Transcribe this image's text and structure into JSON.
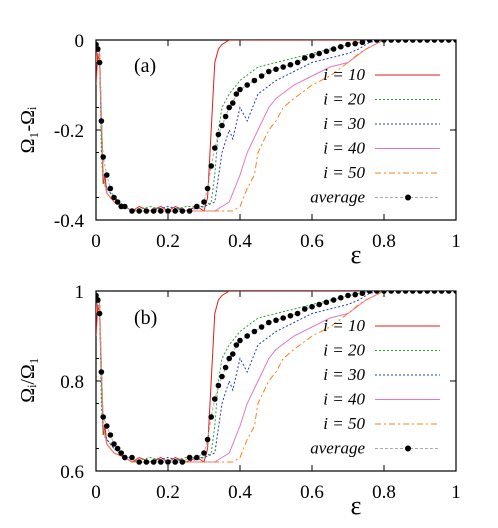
{
  "chart_data": [
    {
      "type": "line",
      "panel_label": "(a)",
      "xlabel": "ε",
      "ylabel": "Ω₁-Ωᵢ",
      "xlim": [
        0,
        1
      ],
      "ylim": [
        -0.4,
        0
      ],
      "xticks": [
        "0",
        "0.2",
        "0.4",
        "0.6",
        "0.8",
        "1"
      ],
      "yticks": [
        "0",
        "-0.2",
        "-0.4"
      ],
      "legend_position": "right",
      "series": [
        {
          "name": "i = 10",
          "color": "#e41a1c",
          "style": "solid",
          "x": [
            0,
            0.005,
            0.01,
            0.015,
            0.02,
            0.025,
            0.03,
            0.05,
            0.08,
            0.1,
            0.12,
            0.15,
            0.18,
            0.2,
            0.22,
            0.25,
            0.28,
            0.3,
            0.31,
            0.32,
            0.33,
            0.34,
            0.35,
            0.37,
            0.4,
            0.5,
            0.6,
            0.7,
            0.8,
            0.9,
            1
          ],
          "y": [
            -0.1,
            -0.03,
            -0.05,
            -0.2,
            -0.32,
            -0.3,
            -0.34,
            -0.36,
            -0.37,
            -0.38,
            -0.37,
            -0.38,
            -0.37,
            -0.38,
            -0.37,
            -0.38,
            -0.37,
            -0.38,
            -0.35,
            -0.2,
            -0.05,
            -0.02,
            -0.01,
            0,
            0,
            0,
            0,
            0,
            0,
            0,
            0
          ]
        },
        {
          "name": "i = 20",
          "color": "#2ca02c",
          "style": "dotted",
          "x": [
            0,
            0.005,
            0.01,
            0.015,
            0.02,
            0.03,
            0.05,
            0.08,
            0.1,
            0.15,
            0.2,
            0.25,
            0.3,
            0.32,
            0.33,
            0.34,
            0.35,
            0.37,
            0.4,
            0.45,
            0.5,
            0.55,
            0.6,
            0.65,
            0.7,
            0.73,
            0.75,
            0.8,
            0.9,
            1
          ],
          "y": [
            -0.05,
            -0.01,
            -0.02,
            -0.25,
            -0.32,
            -0.33,
            -0.35,
            -0.37,
            -0.38,
            -0.37,
            -0.38,
            -0.37,
            -0.37,
            -0.36,
            -0.3,
            -0.2,
            -0.15,
            -0.12,
            -0.09,
            -0.06,
            -0.05,
            -0.04,
            -0.03,
            -0.02,
            -0.01,
            -0.005,
            0,
            0,
            0,
            0
          ]
        },
        {
          "name": "i = 30",
          "color": "#1f3fbf",
          "style": "dotted",
          "x": [
            0,
            0.005,
            0.01,
            0.02,
            0.03,
            0.05,
            0.08,
            0.1,
            0.15,
            0.2,
            0.25,
            0.3,
            0.33,
            0.35,
            0.37,
            0.38,
            0.4,
            0.42,
            0.45,
            0.5,
            0.55,
            0.6,
            0.65,
            0.7,
            0.73,
            0.76,
            0.8,
            0.9,
            1
          ],
          "y": [
            -0.05,
            -0.01,
            -0.03,
            -0.3,
            -0.33,
            -0.35,
            -0.37,
            -0.38,
            -0.38,
            -0.37,
            -0.38,
            -0.37,
            -0.36,
            -0.25,
            -0.2,
            -0.22,
            -0.15,
            -0.18,
            -0.12,
            -0.09,
            -0.07,
            -0.05,
            -0.04,
            -0.03,
            -0.02,
            -0.005,
            0,
            0,
            0
          ]
        },
        {
          "name": "i = 40",
          "color": "#e377c2",
          "style": "solid",
          "x": [
            0,
            0.005,
            0.01,
            0.02,
            0.03,
            0.05,
            0.08,
            0.1,
            0.15,
            0.2,
            0.25,
            0.3,
            0.33,
            0.35,
            0.37,
            0.4,
            0.42,
            0.45,
            0.48,
            0.5,
            0.55,
            0.6,
            0.65,
            0.7,
            0.75,
            0.8,
            0.9,
            1
          ],
          "y": [
            -0.05,
            -0.01,
            -0.03,
            -0.3,
            -0.34,
            -0.36,
            -0.37,
            -0.38,
            -0.38,
            -0.38,
            -0.38,
            -0.38,
            -0.38,
            -0.37,
            -0.36,
            -0.3,
            -0.25,
            -0.2,
            -0.15,
            -0.13,
            -0.1,
            -0.08,
            -0.06,
            -0.05,
            -0.02,
            0,
            0,
            0
          ]
        },
        {
          "name": "i = 50",
          "color": "#ff7f0e",
          "style": "dashdot",
          "x": [
            0,
            0.005,
            0.01,
            0.02,
            0.03,
            0.05,
            0.08,
            0.1,
            0.15,
            0.2,
            0.25,
            0.3,
            0.35,
            0.38,
            0.4,
            0.42,
            0.44,
            0.45,
            0.48,
            0.5,
            0.52,
            0.55,
            0.6,
            0.65,
            0.7,
            0.73,
            0.75,
            0.8,
            0.9,
            1
          ],
          "y": [
            -0.05,
            -0.01,
            -0.03,
            -0.3,
            -0.34,
            -0.36,
            -0.37,
            -0.38,
            -0.38,
            -0.38,
            -0.38,
            -0.38,
            -0.38,
            -0.38,
            -0.37,
            -0.33,
            -0.3,
            -0.25,
            -0.2,
            -0.18,
            -0.15,
            -0.13,
            -0.1,
            -0.08,
            -0.05,
            -0.03,
            -0.02,
            0,
            0,
            0
          ]
        },
        {
          "name": "average",
          "color": "#000000",
          "style": "points",
          "line_color": "#aaaaaa",
          "x": [
            0,
            0.005,
            0.01,
            0.015,
            0.02,
            0.03,
            0.04,
            0.05,
            0.06,
            0.07,
            0.08,
            0.1,
            0.12,
            0.14,
            0.16,
            0.18,
            0.2,
            0.22,
            0.24,
            0.26,
            0.28,
            0.3,
            0.31,
            0.32,
            0.33,
            0.34,
            0.35,
            0.36,
            0.37,
            0.38,
            0.39,
            0.4,
            0.42,
            0.44,
            0.46,
            0.48,
            0.5,
            0.52,
            0.54,
            0.56,
            0.58,
            0.6,
            0.62,
            0.64,
            0.66,
            0.68,
            0.7,
            0.72,
            0.74,
            0.76,
            0.78,
            0.8,
            0.82,
            0.84,
            0.86,
            0.88,
            0.9,
            0.92,
            0.94,
            0.96,
            0.98,
            1
          ],
          "y": [
            -0.01,
            -0.02,
            -0.05,
            -0.18,
            -0.26,
            -0.3,
            -0.33,
            -0.35,
            -0.36,
            -0.37,
            -0.37,
            -0.38,
            -0.38,
            -0.38,
            -0.38,
            -0.38,
            -0.38,
            -0.38,
            -0.38,
            -0.38,
            -0.37,
            -0.36,
            -0.33,
            -0.28,
            -0.24,
            -0.21,
            -0.19,
            -0.17,
            -0.15,
            -0.14,
            -0.12,
            -0.11,
            -0.1,
            -0.09,
            -0.08,
            -0.07,
            -0.065,
            -0.06,
            -0.055,
            -0.05,
            -0.04,
            -0.035,
            -0.03,
            -0.025,
            -0.02,
            -0.015,
            -0.01,
            -0.008,
            -0.005,
            0,
            0,
            0,
            0,
            0,
            0,
            0,
            0,
            0,
            0,
            0,
            0,
            0
          ]
        }
      ]
    },
    {
      "type": "line",
      "panel_label": "(b)",
      "xlabel": "ε",
      "ylabel": "Ωᵢ/Ω₁",
      "xlim": [
        0,
        1
      ],
      "ylim": [
        0.6,
        1
      ],
      "xticks": [
        "0",
        "0.2",
        "0.4",
        "0.6",
        "0.8",
        "1"
      ],
      "yticks": [
        "1",
        "0.8",
        "0.6"
      ],
      "legend_position": "right",
      "series": [
        {
          "name": "i = 10",
          "color": "#e41a1c",
          "style": "solid",
          "x": [
            0,
            0.005,
            0.01,
            0.015,
            0.02,
            0.025,
            0.03,
            0.05,
            0.08,
            0.1,
            0.12,
            0.15,
            0.18,
            0.2,
            0.22,
            0.25,
            0.28,
            0.3,
            0.31,
            0.32,
            0.33,
            0.34,
            0.35,
            0.37,
            0.4,
            0.5,
            0.6,
            0.7,
            0.8,
            0.9,
            1
          ],
          "y": [
            0.9,
            0.97,
            0.95,
            0.8,
            0.68,
            0.7,
            0.66,
            0.64,
            0.63,
            0.62,
            0.63,
            0.62,
            0.63,
            0.62,
            0.63,
            0.62,
            0.63,
            0.62,
            0.65,
            0.8,
            0.95,
            0.98,
            0.99,
            1,
            1,
            1,
            1,
            1,
            1,
            1,
            1
          ]
        },
        {
          "name": "i = 20",
          "color": "#2ca02c",
          "style": "dotted",
          "x": [
            0,
            0.005,
            0.01,
            0.015,
            0.02,
            0.03,
            0.05,
            0.08,
            0.1,
            0.15,
            0.2,
            0.25,
            0.3,
            0.32,
            0.33,
            0.34,
            0.35,
            0.37,
            0.4,
            0.45,
            0.5,
            0.55,
            0.6,
            0.65,
            0.7,
            0.73,
            0.75,
            0.8,
            0.9,
            1
          ],
          "y": [
            0.95,
            0.99,
            0.98,
            0.75,
            0.68,
            0.67,
            0.65,
            0.63,
            0.62,
            0.63,
            0.62,
            0.63,
            0.63,
            0.64,
            0.7,
            0.8,
            0.85,
            0.88,
            0.91,
            0.94,
            0.95,
            0.96,
            0.97,
            0.98,
            0.99,
            0.995,
            1,
            1,
            1,
            1
          ]
        },
        {
          "name": "i = 30",
          "color": "#1f3fbf",
          "style": "dotted",
          "x": [
            0,
            0.005,
            0.01,
            0.02,
            0.03,
            0.05,
            0.08,
            0.1,
            0.15,
            0.2,
            0.25,
            0.3,
            0.33,
            0.35,
            0.37,
            0.38,
            0.4,
            0.42,
            0.45,
            0.5,
            0.55,
            0.6,
            0.65,
            0.7,
            0.73,
            0.76,
            0.8,
            0.9,
            1
          ],
          "y": [
            0.95,
            0.99,
            0.97,
            0.7,
            0.67,
            0.65,
            0.63,
            0.62,
            0.62,
            0.63,
            0.62,
            0.63,
            0.64,
            0.75,
            0.8,
            0.78,
            0.85,
            0.82,
            0.88,
            0.91,
            0.93,
            0.95,
            0.96,
            0.97,
            0.98,
            0.995,
            1,
            1,
            1
          ]
        },
        {
          "name": "i = 40",
          "color": "#e377c2",
          "style": "solid",
          "x": [
            0,
            0.005,
            0.01,
            0.02,
            0.03,
            0.05,
            0.08,
            0.1,
            0.15,
            0.2,
            0.25,
            0.3,
            0.33,
            0.35,
            0.37,
            0.4,
            0.42,
            0.45,
            0.48,
            0.5,
            0.55,
            0.6,
            0.65,
            0.7,
            0.75,
            0.8,
            0.9,
            1
          ],
          "y": [
            0.95,
            0.99,
            0.97,
            0.7,
            0.66,
            0.64,
            0.63,
            0.62,
            0.62,
            0.62,
            0.62,
            0.62,
            0.62,
            0.63,
            0.64,
            0.7,
            0.75,
            0.8,
            0.85,
            0.87,
            0.9,
            0.92,
            0.94,
            0.95,
            0.98,
            1,
            1,
            1
          ]
        },
        {
          "name": "i = 50",
          "color": "#ff7f0e",
          "style": "dashdot",
          "x": [
            0,
            0.005,
            0.01,
            0.02,
            0.03,
            0.05,
            0.08,
            0.1,
            0.15,
            0.2,
            0.25,
            0.3,
            0.35,
            0.38,
            0.4,
            0.42,
            0.44,
            0.45,
            0.48,
            0.5,
            0.52,
            0.55,
            0.6,
            0.65,
            0.7,
            0.73,
            0.75,
            0.8,
            0.9,
            1
          ],
          "y": [
            0.95,
            0.99,
            0.97,
            0.7,
            0.66,
            0.64,
            0.63,
            0.62,
            0.62,
            0.62,
            0.62,
            0.62,
            0.62,
            0.62,
            0.63,
            0.67,
            0.7,
            0.75,
            0.8,
            0.82,
            0.85,
            0.87,
            0.9,
            0.92,
            0.95,
            0.97,
            0.98,
            1,
            1,
            1
          ]
        },
        {
          "name": "average",
          "color": "#000000",
          "style": "points",
          "line_color": "#aaaaaa",
          "x": [
            0,
            0.005,
            0.01,
            0.015,
            0.02,
            0.03,
            0.04,
            0.05,
            0.06,
            0.07,
            0.08,
            0.1,
            0.12,
            0.14,
            0.16,
            0.18,
            0.2,
            0.22,
            0.24,
            0.26,
            0.28,
            0.3,
            0.31,
            0.32,
            0.33,
            0.34,
            0.35,
            0.36,
            0.37,
            0.38,
            0.39,
            0.4,
            0.42,
            0.44,
            0.46,
            0.48,
            0.5,
            0.52,
            0.54,
            0.56,
            0.58,
            0.6,
            0.62,
            0.64,
            0.66,
            0.68,
            0.7,
            0.72,
            0.74,
            0.76,
            0.78,
            0.8,
            0.82,
            0.84,
            0.86,
            0.88,
            0.9,
            0.92,
            0.94,
            0.96,
            0.98,
            1
          ],
          "y": [
            0.99,
            0.98,
            0.95,
            0.82,
            0.72,
            0.7,
            0.68,
            0.66,
            0.65,
            0.64,
            0.63,
            0.63,
            0.62,
            0.62,
            0.62,
            0.62,
            0.62,
            0.62,
            0.62,
            0.63,
            0.63,
            0.64,
            0.67,
            0.72,
            0.76,
            0.79,
            0.81,
            0.83,
            0.85,
            0.86,
            0.88,
            0.89,
            0.9,
            0.91,
            0.92,
            0.93,
            0.935,
            0.94,
            0.945,
            0.95,
            0.96,
            0.965,
            0.97,
            0.975,
            0.98,
            0.985,
            0.99,
            0.992,
            0.995,
            1,
            1,
            1,
            1,
            1,
            1,
            1,
            1,
            1,
            1,
            1,
            1,
            1
          ]
        }
      ]
    }
  ]
}
